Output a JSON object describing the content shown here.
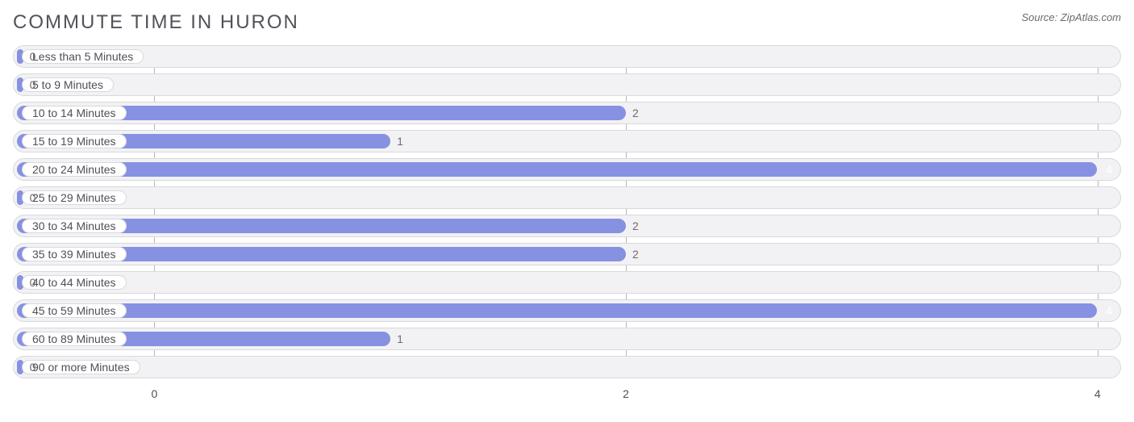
{
  "title": "COMMUTE TIME IN HURON",
  "source": "Source: ZipAtlas.com",
  "chart": {
    "type": "bar-horizontal",
    "bar_color": "#8691e2",
    "track_color": "#f2f2f4",
    "track_border_color": "#d9d9de",
    "pill_bg": "#ffffff",
    "pill_border": "#d9d9de",
    "grid_color": "#b8b8bd",
    "text_color": "#4f4f55",
    "title_color": "#52525a",
    "source_color": "#6b6b72",
    "value_on_bar_color": "#ffffff",
    "value_off_bar_color": "#6b6b72",
    "x_min": -0.6,
    "x_max": 4.1,
    "x_ticks": [
      0,
      2,
      4
    ],
    "zero_bar_len": 0.04,
    "rows": [
      {
        "label": "Less than 5 Minutes",
        "value": 0
      },
      {
        "label": "5 to 9 Minutes",
        "value": 0
      },
      {
        "label": "10 to 14 Minutes",
        "value": 2
      },
      {
        "label": "15 to 19 Minutes",
        "value": 1
      },
      {
        "label": "20 to 24 Minutes",
        "value": 4
      },
      {
        "label": "25 to 29 Minutes",
        "value": 0
      },
      {
        "label": "30 to 34 Minutes",
        "value": 2
      },
      {
        "label": "35 to 39 Minutes",
        "value": 2
      },
      {
        "label": "40 to 44 Minutes",
        "value": 0
      },
      {
        "label": "45 to 59 Minutes",
        "value": 4
      },
      {
        "label": "60 to 89 Minutes",
        "value": 1
      },
      {
        "label": "90 or more Minutes",
        "value": 0
      }
    ]
  }
}
